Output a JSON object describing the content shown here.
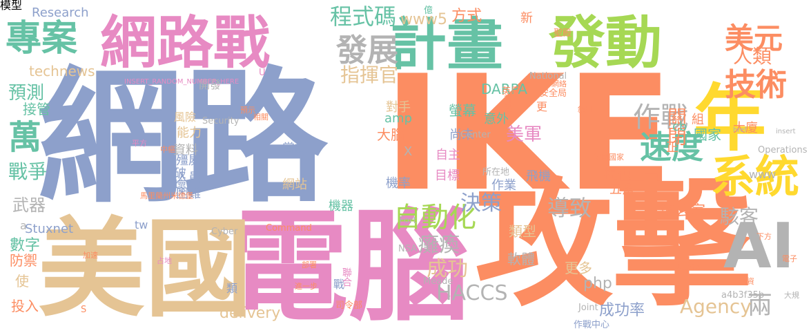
{
  "palette": {
    "green": "#66c2a5",
    "orange": "#fc8d62",
    "blue": "#8da0cb",
    "pink": "#e78ac3",
    "lime": "#a6d854",
    "yellow": "#ffd92f",
    "tan": "#e5c494",
    "gray": "#b3b3b3"
  },
  "words": [
    {
      "text": "網路",
      "color": "blue"
    },
    {
      "text": "IKE",
      "color": "orange"
    },
    {
      "text": "攻擊",
      "color": "orange"
    },
    {
      "text": "電腦",
      "color": "pink"
    },
    {
      "text": "美國",
      "color": "tan"
    },
    {
      "text": "網路戰",
      "color": "pink"
    },
    {
      "text": "計畫",
      "color": "green"
    },
    {
      "text": "發動",
      "color": "lime"
    },
    {
      "text": "專案",
      "color": "green"
    },
    {
      "text": "年",
      "color": "yellow"
    },
    {
      "text": "AI",
      "color": "gray"
    },
    {
      "text": "系統",
      "color": "yellow"
    },
    {
      "text": "技術",
      "color": "orange"
    },
    {
      "text": "美元",
      "color": "orange"
    },
    {
      "text": "人類",
      "color": "orange"
    },
    {
      "text": "發展",
      "color": "gray"
    },
    {
      "text": "程式碼",
      "color": "green"
    },
    {
      "text": "萬",
      "color": "green"
    },
    {
      "text": "預測",
      "color": "green"
    },
    {
      "text": "戰爭",
      "color": "green"
    },
    {
      "text": "速度",
      "color": "green"
    },
    {
      "text": "作戰",
      "color": "gray"
    },
    {
      "text": "自動化",
      "color": "lime"
    },
    {
      "text": "癱瘓",
      "color": "gray"
    },
    {
      "text": "成功",
      "color": "tan"
    },
    {
      "text": "決策",
      "color": "blue"
    },
    {
      "text": "導致",
      "color": "gray"
    },
    {
      "text": "駭客",
      "color": "gray"
    },
    {
      "text": "美軍",
      "color": "pink"
    },
    {
      "text": "關閉",
      "color": "orange"
    },
    {
      "text": "國家",
      "color": "green"
    },
    {
      "text": "HACCS",
      "color": "gray"
    },
    {
      "text": "兩",
      "color": "gray"
    },
    {
      "text": "Agency",
      "color": "tan"
    },
    {
      "text": "指揮官",
      "color": "tan"
    },
    {
      "text": "www5",
      "color": "tan"
    },
    {
      "text": "方式",
      "color": "orange"
    },
    {
      "text": "Research",
      "color": "blue"
    },
    {
      "text": "technews",
      "color": "tan"
    },
    {
      "text": "Stuxnet",
      "color": "blue"
    },
    {
      "text": "delivery",
      "color": "tan"
    },
    {
      "text": "成功率",
      "color": "blue"
    },
    {
      "text": "軟體",
      "color": "gray"
    },
    {
      "text": "類型",
      "color": "tan"
    },
    {
      "text": "更多",
      "color": "tan"
    },
    {
      "text": "php",
      "color": "gray"
    },
    {
      "text": "武器",
      "color": "gray"
    },
    {
      "text": "數字",
      "color": "green"
    },
    {
      "text": "防禦",
      "color": "orange"
    },
    {
      "text": "投入",
      "color": "orange"
    },
    {
      "text": "使",
      "color": "tan"
    },
    {
      "text": "接管",
      "color": "green"
    },
    {
      "text": "大腦",
      "color": "orange"
    },
    {
      "text": "螢幕",
      "color": "green"
    },
    {
      "text": "DARPA",
      "color": "green"
    },
    {
      "text": "意外",
      "color": "green"
    },
    {
      "text": "對手",
      "color": "tan"
    },
    {
      "text": "amp",
      "color": "green"
    },
    {
      "text": "尚未",
      "color": "blue"
    },
    {
      "text": "自主",
      "color": "pink"
    },
    {
      "text": "目標",
      "color": "pink"
    },
    {
      "text": "飛機",
      "color": "blue"
    },
    {
      "text": "作業",
      "color": "blue"
    },
    {
      "text": "機率",
      "color": "blue"
    },
    {
      "text": "機器",
      "color": "green"
    },
    {
      "text": "嘗試",
      "color": "blue"
    },
    {
      "text": "網站",
      "color": "tan"
    },
    {
      "text": "殭屍",
      "color": "blue"
    },
    {
      "text": "人員",
      "color": "blue"
    },
    {
      "text": "困難",
      "color": "blue"
    },
    {
      "text": "破壞",
      "color": "blue"
    },
    {
      "text": "資料",
      "color": "gray"
    },
    {
      "text": "能力",
      "color": "tan"
    },
    {
      "text": "風險",
      "color": "tan"
    },
    {
      "text": "開發",
      "color": "gray"
    },
    {
      "text": "提供",
      "color": "orange"
    },
    {
      "text": "五角",
      "color": "orange"
    },
    {
      "text": "辦公室",
      "color": "orange"
    },
    {
      "text": "大廈",
      "color": "orange"
    },
    {
      "text": "組",
      "color": "orange"
    },
    {
      "text": "正",
      "color": "orange"
    },
    {
      "text": "www",
      "color": "gray"
    },
    {
      "text": "cb",
      "color": "green"
    },
    {
      "text": "新",
      "color": "orange"
    },
    {
      "text": "更",
      "color": "orange"
    },
    {
      "text": "tw",
      "color": "blue"
    },
    {
      "text": "類",
      "color": "blue"
    },
    {
      "text": "戰",
      "color": "blue"
    },
    {
      "text": "a",
      "color": "gray"
    },
    {
      "text": "X",
      "color": "gray"
    },
    {
      "text": "Command",
      "color": "orange"
    },
    {
      "text": "Cyber",
      "color": "gray"
    },
    {
      "text": "Security",
      "color": "gray"
    },
    {
      "text": "National",
      "color": "gray"
    },
    {
      "text": "Center",
      "color": "gray"
    },
    {
      "text": "Fort",
      "color": "gray"
    },
    {
      "text": "Meade",
      "color": "gray"
    },
    {
      "text": "NSA",
      "color": "gray"
    },
    {
      "text": "Joint",
      "color": "gray"
    },
    {
      "text": "Operations",
      "color": "gray"
    },
    {
      "text": "a4b3f35b",
      "color": "gray"
    },
    {
      "text": "英尺",
      "color": "orange"
    },
    {
      "text": "安全局",
      "color": "orange"
    },
    {
      "text": "神經",
      "color": "orange"
    },
    {
      "text": "所在地",
      "color": "gray"
    },
    {
      "text": "司令部",
      "color": "orange"
    },
    {
      "text": "聯合",
      "color": "pink"
    },
    {
      "text": "作戰中心",
      "color": "blue"
    },
    {
      "text": "馬里蘭州米德堡",
      "color": "orange"
    },
    {
      "text": "INSERT_RANDOM_NUMBER_HERE",
      "color": "pink"
    },
    {
      "text": "href",
      "color": "gray"
    },
    {
      "text": "insert",
      "color": "gray"
    },
    {
      "text": "大規",
      "color": "gray"
    },
    {
      "text": "S",
      "color": "orange"
    },
    {
      "text": "U",
      "color": "pink"
    },
    {
      "text": "占地",
      "color": "pink"
    },
    {
      "text": "中樞",
      "color": "orange"
    },
    {
      "text": "平方",
      "color": "pink"
    },
    {
      "text": "美國國家",
      "color": "orange"
    },
    {
      "text": "聖殿",
      "color": "orange"
    },
    {
      "text": "億",
      "color": "green"
    },
    {
      "text": "敘用",
      "color": "orange"
    },
    {
      "text": "相關",
      "color": "orange"
    },
    {
      "text": "預示",
      "color": "orange"
    },
    {
      "text": "建立",
      "color": "orange"
    },
    {
      "text": "人工智慧",
      "color": "orange"
    },
    {
      "text": "下方",
      "color": "orange"
    },
    {
      "text": "耗資",
      "color": "orange"
    },
    {
      "text": "電子",
      "color": "orange"
    },
    {
      "text": "進一步",
      "color": "orange"
    },
    {
      "text": "部署",
      "color": "orange"
    },
    {
      "text": "加速",
      "color": "orange"
    },
    {
      "text": "網絡",
      "color": "orange"
    },
    {
      "text": "模型",
      "color": "orange"
    }
  ]
}
